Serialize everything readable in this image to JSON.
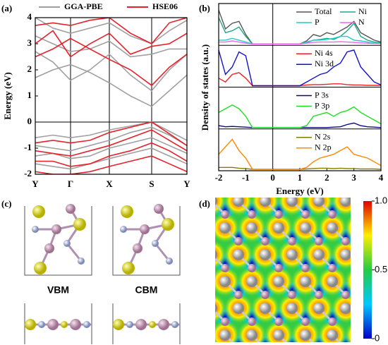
{
  "chart_data": [
    {
      "type": "bands",
      "panel_label": "(a)",
      "ylabel": "Energy (eV)",
      "x": [
        0,
        0.5,
        1,
        1.55,
        2.1,
        2.7,
        3.3,
        3.8,
        4.3
      ],
      "xlim": [
        0,
        4.3
      ],
      "xticks": [
        {
          "value": 0,
          "label": "Y"
        },
        {
          "value": 1,
          "label": "Γ"
        },
        {
          "value": 2.1,
          "label": "X"
        },
        {
          "value": 3.3,
          "label": "S"
        },
        {
          "value": 4.3,
          "label": "Y"
        }
      ],
      "ylim": [
        -2,
        4
      ],
      "yticks": [
        -2,
        -1,
        0,
        1,
        2,
        3,
        4
      ],
      "series": [
        {
          "name": "GGA-PBE",
          "color": "#a0a0a0",
          "bands": [
            [
              1.7,
              2.0,
              2.2,
              1.9,
              1.5,
              1.0,
              0.6,
              1.2,
              1.8
            ],
            [
              2.7,
              2.3,
              1.6,
              2.0,
              2.6,
              1.8,
              1.2,
              2.0,
              2.6
            ],
            [
              3.3,
              3.0,
              2.7,
              2.8,
              3.1,
              2.5,
              2.6,
              2.8,
              2.8
            ],
            [
              4.0,
              3.6,
              3.4,
              3.6,
              3.8,
              3.3,
              3.0,
              3.5,
              3.9
            ],
            [
              -0.6,
              -0.5,
              -0.6,
              -0.5,
              -0.3,
              -0.15,
              0,
              -0.35,
              -0.7
            ],
            [
              -0.9,
              -1.0,
              -1.1,
              -0.9,
              -0.7,
              -0.4,
              -0.2,
              -0.5,
              -0.9
            ],
            [
              -1.3,
              -1.2,
              -1.4,
              -1.3,
              -1.0,
              -0.8,
              -0.6,
              -0.9,
              -1.2
            ],
            [
              -1.6,
              -1.7,
              -1.8,
              -1.6,
              -1.4,
              -1.2,
              -1.0,
              -1.3,
              -1.6
            ]
          ]
        },
        {
          "name": "HSE06",
          "color": "#e8202a",
          "bands": [
            [
              2.5,
              2.8,
              3.2,
              2.8,
              2.4,
              2.0,
              1.4,
              2.1,
              2.6
            ],
            [
              3.0,
              3.5,
              2.5,
              3.0,
              3.4,
              2.6,
              2.9,
              3.0,
              3.4
            ],
            [
              3.7,
              3.8,
              3.7,
              3.9,
              4.0,
              3.4,
              3.0,
              3.8,
              4.0
            ],
            [
              -0.8,
              -0.7,
              -0.8,
              -0.7,
              -0.4,
              -0.2,
              0,
              -0.45,
              -0.9
            ],
            [
              -1.1,
              -1.2,
              -1.3,
              -1.1,
              -0.9,
              -0.6,
              -0.3,
              -0.7,
              -1.1
            ],
            [
              -1.5,
              -1.5,
              -1.7,
              -1.6,
              -1.3,
              -1.1,
              -0.8,
              -1.1,
              -1.5
            ],
            [
              -1.9,
              -2.0,
              -2.0,
              -1.9,
              -1.7,
              -1.5,
              -1.3,
              -1.6,
              -1.9
            ]
          ]
        }
      ]
    },
    {
      "type": "dos",
      "panel_label": "(b)",
      "xlabel": "Energy (eV)",
      "ylabel": "Density of states (a.u.)",
      "xlim": [
        -2,
        4
      ],
      "xticks": [
        -2,
        -1,
        0,
        1,
        2,
        3,
        4
      ],
      "x": [
        -2,
        -1.75,
        -1.5,
        -1.25,
        -1,
        -0.75,
        -0.5,
        -0.25,
        0,
        0.25,
        0.5,
        0.75,
        1,
        1.25,
        1.5,
        1.75,
        2,
        2.25,
        2.5,
        2.75,
        3,
        3.25,
        3.5,
        3.75,
        4
      ],
      "subplots": [
        {
          "ylim": [
            0,
            1
          ],
          "series": [
            {
              "name": "Total",
              "color": "#555555",
              "values": [
                0.9,
                0.4,
                0.55,
                0.6,
                0.25,
                0,
                0,
                0,
                0,
                0,
                0,
                0,
                0,
                0.08,
                0.25,
                0.2,
                0.3,
                0.25,
                0.35,
                0.45,
                0.6,
                0.3,
                0.2,
                0.1,
                0.05
              ]
            },
            {
              "name": "Ni",
              "color": "#1aaa88",
              "values": [
                0.7,
                0.3,
                0.35,
                0.45,
                0.2,
                0,
                0,
                0,
                0,
                0,
                0,
                0,
                0,
                0.03,
                0.1,
                0.12,
                0.15,
                0.12,
                0.2,
                0.35,
                0.55,
                0.2,
                0.1,
                0.05,
                0.03
              ]
            },
            {
              "name": "P",
              "color": "#22cccc",
              "values": [
                0.1,
                0.1,
                0.15,
                0.1,
                0.05,
                0,
                0,
                0,
                0,
                0,
                0,
                0,
                0,
                0.05,
                0.1,
                0.1,
                0.12,
                0.15,
                0.2,
                0.2,
                0.1,
                0.08,
                0.05,
                0.02,
                0.01
              ]
            },
            {
              "name": "N",
              "color": "#ee66ee",
              "values": [
                0.05,
                0.05,
                0.08,
                0.05,
                0.02,
                0,
                0,
                0,
                0,
                0,
                0,
                0,
                0,
                0.02,
                0.04,
                0.05,
                0.05,
                0.05,
                0.06,
                0.05,
                0.04,
                0.03,
                0.02,
                0.01,
                0.01
              ]
            }
          ]
        },
        {
          "ylim": [
            0,
            1
          ],
          "series": [
            {
              "name": "Ni 4s",
              "color": "#ee2222",
              "values": [
                0.2,
                0.1,
                0.3,
                0.35,
                0.2,
                0,
                0,
                0,
                0,
                0,
                0,
                0,
                0,
                0.02,
                0.03,
                0.03,
                0.04,
                0.05,
                0.05,
                0.03,
                0.02,
                0.02,
                0.01,
                0.01,
                0.01
              ]
            },
            {
              "name": "Ni 3d",
              "color": "#1111cc",
              "values": [
                0.95,
                0.3,
                0.5,
                0.9,
                0.8,
                0,
                0,
                0,
                0,
                0,
                0,
                0,
                0,
                0.1,
                0.2,
                0.3,
                0.35,
                0.5,
                0.6,
                0.9,
                0.95,
                0.5,
                0.3,
                0.1,
                0.02
              ]
            }
          ]
        },
        {
          "ylim": [
            0,
            1
          ],
          "series": [
            {
              "name": "P 3s",
              "color": "#0a0a80",
              "values": [
                0.05,
                0.02,
                0.03,
                0.02,
                0.01,
                0,
                0,
                0,
                0,
                0,
                0,
                0,
                0,
                0,
                0,
                0,
                0,
                0.01,
                0.02,
                0.08,
                0.12,
                0.05,
                0.02,
                0.01,
                0
              ]
            },
            {
              "name": "P 3p",
              "color": "#22dd22",
              "values": [
                0.4,
                0.5,
                0.6,
                0.5,
                0.3,
                0,
                0,
                0,
                0,
                0,
                0,
                0,
                0,
                0.05,
                0.3,
                0.35,
                0.4,
                0.3,
                0.4,
                0.45,
                0.55,
                0.4,
                0.3,
                0.2,
                0.1
              ]
            }
          ]
        },
        {
          "ylim": [
            0,
            1
          ],
          "series": [
            {
              "name": "N 2s",
              "color": "#8a7a00",
              "values": [
                0.05,
                0.05,
                0.05,
                0.03,
                0.02,
                0,
                0,
                0,
                0,
                0,
                0,
                0,
                0,
                0.01,
                0.02,
                0.03,
                0.03,
                0.02,
                0.03,
                0.02,
                0.02,
                0.01,
                0.01,
                0.01,
                0
              ]
            },
            {
              "name": "N 2p",
              "color": "#ff8800",
              "values": [
                0.4,
                0.6,
                0.8,
                0.5,
                0.3,
                0,
                0,
                0,
                0,
                0,
                0,
                0,
                0,
                0.05,
                0.2,
                0.3,
                0.35,
                0.4,
                0.5,
                0.6,
                0.4,
                0.35,
                0.3,
                0.2,
                0.1
              ]
            }
          ]
        }
      ]
    },
    {
      "type": "structure",
      "panel_label": "(c)",
      "labels": [
        "VBM",
        "CBM"
      ]
    },
    {
      "type": "heatmap",
      "panel_label": "(d)",
      "colorbar": {
        "lim": [
          0,
          1
        ],
        "ticks": [
          0,
          0.5,
          {
            "value": 1,
            "label": "1.0"
          }
        ]
      }
    }
  ]
}
